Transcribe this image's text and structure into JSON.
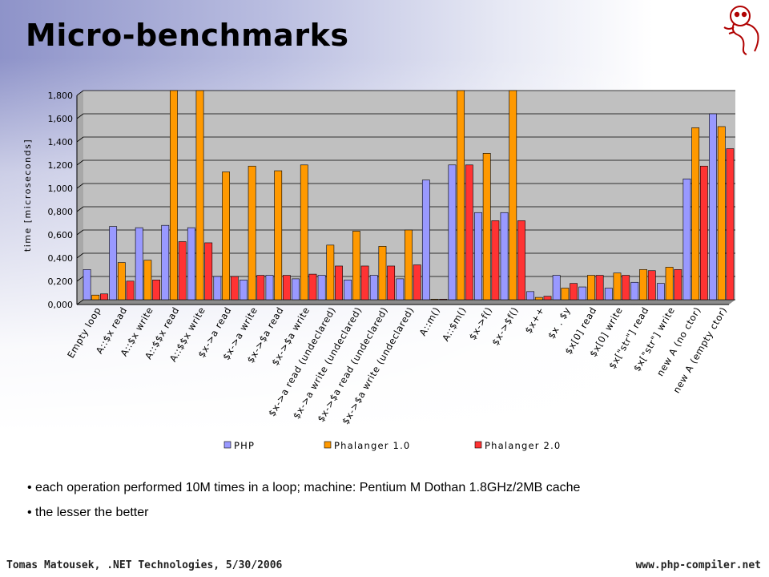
{
  "slide": {
    "title": "Micro-benchmarks",
    "bullets": [
      "each operation performed 10M times in a loop; machine: Pentium M Dothan 1.8GHz/2MB cache",
      "the lesser the better"
    ],
    "footer_left": "Tomas Matousek, .NET Technologies, 5/30/2006",
    "footer_right": "www.php-compiler.net",
    "logo_icon": "elephant-logo-icon"
  },
  "colors": {
    "PHP": "#9999ff",
    "Phalanger 1.0": "#ff9900",
    "Phalanger 2.0": "#ff3333",
    "plot_bg": "#c0c0c0"
  },
  "chart_data": {
    "type": "bar",
    "ylabel": "time [microseconds]",
    "xlabel": "",
    "ylim": [
      0,
      1.8
    ],
    "yticks": [
      "0,000",
      "0,200",
      "0,400",
      "0,600",
      "0,800",
      "1,000",
      "1,200",
      "1,400",
      "1,600",
      "1,800"
    ],
    "grid": true,
    "legend": "bottom",
    "categories": [
      "Empty loop",
      "A::$x read",
      "A::$x write",
      "A::$$x read",
      "A::$$x write",
      "$x->a read",
      "$x->a write",
      "$x->$a read",
      "$x->$a write",
      "$x->a read (undeclared)",
      "$x->a write (undeclared)",
      "$x->$a read (undeclared)",
      "$x->$a write (undeclared)",
      "A::m()",
      "A::$m()",
      "$x->f()",
      "$x->$f()",
      "$x++",
      "$x . $y",
      "$x[0] read",
      "$x[0] write",
      "$x[\"str\"] read",
      "$x[\"str\"] write",
      "new A (no ctor)",
      "new A (empty ctor)"
    ],
    "series": [
      {
        "name": "PHP",
        "values": [
          0.26,
          0.63,
          0.62,
          0.64,
          0.62,
          0.2,
          0.17,
          0.21,
          0.18,
          0.21,
          0.17,
          0.21,
          0.18,
          1.03,
          1.16,
          0.75,
          0.75,
          0.07,
          0.21,
          0.11,
          0.1,
          0.15,
          0.14,
          1.04,
          1.6
        ]
      },
      {
        "name": "Phalanger 1.0",
        "values": [
          0.04,
          0.32,
          0.34,
          1.82,
          1.82,
          1.1,
          1.15,
          1.11,
          1.16,
          0.47,
          0.59,
          0.46,
          0.6,
          0.005,
          1.82,
          1.26,
          1.82,
          0.02,
          0.1,
          0.21,
          0.23,
          0.26,
          0.28,
          1.48,
          1.49
        ]
      },
      {
        "name": "Phalanger 2.0",
        "values": [
          0.05,
          0.16,
          0.17,
          0.5,
          0.49,
          0.2,
          0.21,
          0.21,
          0.22,
          0.29,
          0.29,
          0.29,
          0.3,
          0.005,
          1.16,
          0.68,
          0.68,
          0.03,
          0.14,
          0.21,
          0.21,
          0.25,
          0.26,
          1.15,
          1.3
        ]
      }
    ]
  }
}
